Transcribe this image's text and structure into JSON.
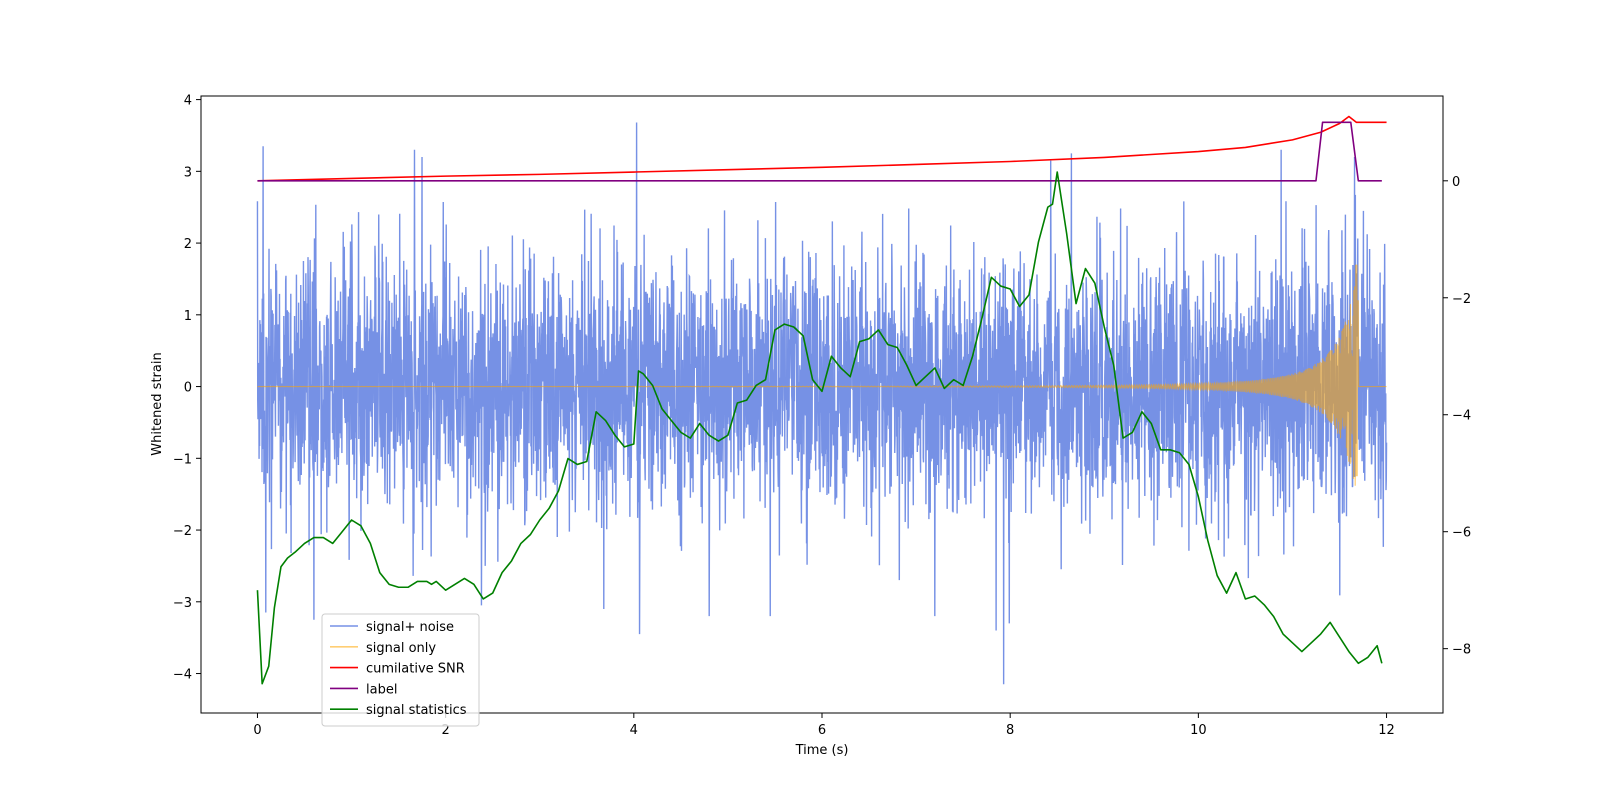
{
  "chart_data": {
    "type": "line",
    "title": "",
    "xlabel": "Time (s)",
    "ylabel": "Whitened strain",
    "y2label": "",
    "xlim": [
      -0.6,
      12.6
    ],
    "ylim": [
      -4.55,
      4.05
    ],
    "y2lim": [
      -9.1,
      1.45
    ],
    "x_ticks": [
      0,
      2,
      4,
      6,
      8,
      10,
      12
    ],
    "y_ticks": [
      -4,
      -3,
      -2,
      -1,
      0,
      1,
      2,
      3,
      4
    ],
    "y2_ticks": [
      -8,
      -6,
      -4,
      -2,
      0
    ],
    "grid": false,
    "legend_position": "lower left",
    "series": [
      {
        "name": "signal+ noise",
        "axis": "left",
        "color": "#6a88e3",
        "kind": "noise",
        "x_range": [
          0,
          12
        ],
        "envelope_sd": 0.85,
        "notable_peaks": [
          {
            "x": 0.06,
            "y": 3.35
          },
          {
            "x": 0.09,
            "y": -3.15
          },
          {
            "x": 0.6,
            "y": -3.25
          },
          {
            "x": 1.67,
            "y": 3.3
          },
          {
            "x": 1.75,
            "y": 3.2
          },
          {
            "x": 2.38,
            "y": -3.05
          },
          {
            "x": 3.68,
            "y": -3.1
          },
          {
            "x": 4.03,
            "y": 3.68
          },
          {
            "x": 4.06,
            "y": -3.45
          },
          {
            "x": 4.8,
            "y": -3.2
          },
          {
            "x": 5.45,
            "y": -3.2
          },
          {
            "x": 7.2,
            "y": -3.2
          },
          {
            "x": 7.85,
            "y": -3.4
          },
          {
            "x": 7.93,
            "y": -4.15
          },
          {
            "x": 7.99,
            "y": -3.3
          },
          {
            "x": 8.43,
            "y": 3.15
          },
          {
            "x": 8.65,
            "y": 3.25
          },
          {
            "x": 10.88,
            "y": 3.3
          },
          {
            "x": 11.66,
            "y": 3.2
          }
        ]
      },
      {
        "name": "signal only",
        "axis": "left",
        "color": "#ffa500",
        "kind": "chirp",
        "x_range": [
          0,
          12
        ],
        "merger_time": 11.68,
        "peak_amplitude": [
          1.7,
          -1.25
        ]
      },
      {
        "name": "cumilative SNR",
        "axis": "right",
        "color": "#ff0000",
        "x": [
          0,
          1,
          2,
          3,
          4,
          5,
          6,
          7,
          8,
          9,
          10,
          10.5,
          11,
          11.3,
          11.5,
          11.6,
          11.68,
          11.7,
          12
        ],
        "y": [
          0,
          0.04,
          0.08,
          0.11,
          0.15,
          0.19,
          0.23,
          0.28,
          0.33,
          0.4,
          0.5,
          0.57,
          0.7,
          0.83,
          0.98,
          1.1,
          1.0,
          1.0,
          1.0
        ]
      },
      {
        "name": "label",
        "axis": "right",
        "color": "#800080",
        "x": [
          0,
          11.25,
          11.32,
          11.62,
          11.7,
          11.95
        ],
        "y": [
          0,
          0,
          1.0,
          1.0,
          0,
          0
        ]
      },
      {
        "name": "signal statistics",
        "axis": "right",
        "color": "#008000",
        "x": [
          0,
          0.05,
          0.12,
          0.18,
          0.25,
          0.32,
          0.4,
          0.5,
          0.6,
          0.7,
          0.8,
          0.9,
          1.0,
          1.1,
          1.2,
          1.3,
          1.4,
          1.5,
          1.6,
          1.7,
          1.8,
          1.85,
          1.9,
          2.0,
          2.1,
          2.2,
          2.3,
          2.4,
          2.5,
          2.6,
          2.7,
          2.8,
          2.9,
          3.0,
          3.1,
          3.2,
          3.3,
          3.4,
          3.5,
          3.6,
          3.7,
          3.8,
          3.9,
          4.0,
          4.05,
          4.1,
          4.2,
          4.3,
          4.4,
          4.5,
          4.6,
          4.7,
          4.8,
          4.9,
          5.0,
          5.1,
          5.2,
          5.3,
          5.4,
          5.5,
          5.6,
          5.7,
          5.8,
          5.9,
          6.0,
          6.1,
          6.2,
          6.3,
          6.4,
          6.5,
          6.6,
          6.7,
          6.8,
          6.9,
          7.0,
          7.1,
          7.2,
          7.3,
          7.4,
          7.5,
          7.6,
          7.7,
          7.8,
          7.9,
          8.0,
          8.1,
          8.2,
          8.3,
          8.4,
          8.45,
          8.5,
          8.6,
          8.7,
          8.8,
          8.9,
          9.0,
          9.1,
          9.2,
          9.3,
          9.4,
          9.5,
          9.6,
          9.7,
          9.8,
          9.9,
          10.0,
          10.1,
          10.2,
          10.3,
          10.4,
          10.5,
          10.6,
          10.7,
          10.8,
          10.9,
          11.0,
          11.1,
          11.2,
          11.3,
          11.4,
          11.5,
          11.6,
          11.7,
          11.8,
          11.9,
          11.95
        ],
        "y": [
          -7.0,
          -8.6,
          -8.3,
          -7.3,
          -6.6,
          -6.45,
          -6.35,
          -6.2,
          -6.1,
          -6.1,
          -6.2,
          -6.0,
          -5.8,
          -5.9,
          -6.2,
          -6.7,
          -6.9,
          -6.95,
          -6.95,
          -6.85,
          -6.85,
          -6.9,
          -6.85,
          -7.0,
          -6.9,
          -6.8,
          -6.9,
          -7.15,
          -7.05,
          -6.7,
          -6.5,
          -6.2,
          -6.05,
          -5.8,
          -5.6,
          -5.3,
          -4.75,
          -4.85,
          -4.8,
          -3.95,
          -4.1,
          -4.35,
          -4.55,
          -4.5,
          -3.25,
          -3.3,
          -3.5,
          -3.9,
          -4.1,
          -4.3,
          -4.4,
          -4.15,
          -4.35,
          -4.45,
          -4.35,
          -3.8,
          -3.75,
          -3.5,
          -3.4,
          -2.55,
          -2.45,
          -2.5,
          -2.65,
          -3.4,
          -3.6,
          -3.0,
          -3.2,
          -3.35,
          -2.75,
          -2.7,
          -2.55,
          -2.8,
          -2.85,
          -3.15,
          -3.5,
          -3.35,
          -3.2,
          -3.55,
          -3.4,
          -3.5,
          -3.0,
          -2.35,
          -1.65,
          -1.8,
          -1.85,
          -2.15,
          -1.95,
          -1.05,
          -0.45,
          -0.4,
          0.15,
          -0.9,
          -2.1,
          -1.5,
          -1.75,
          -2.5,
          -3.15,
          -4.4,
          -4.3,
          -3.95,
          -4.15,
          -4.6,
          -4.6,
          -4.65,
          -4.85,
          -5.4,
          -6.15,
          -6.75,
          -7.05,
          -6.7,
          -7.15,
          -7.1,
          -7.25,
          -7.45,
          -7.75,
          -7.9,
          -8.05,
          -7.9,
          -7.75,
          -7.55,
          -7.8,
          -8.05,
          -8.25,
          -8.15,
          -7.95,
          -8.25
        ]
      }
    ]
  }
}
